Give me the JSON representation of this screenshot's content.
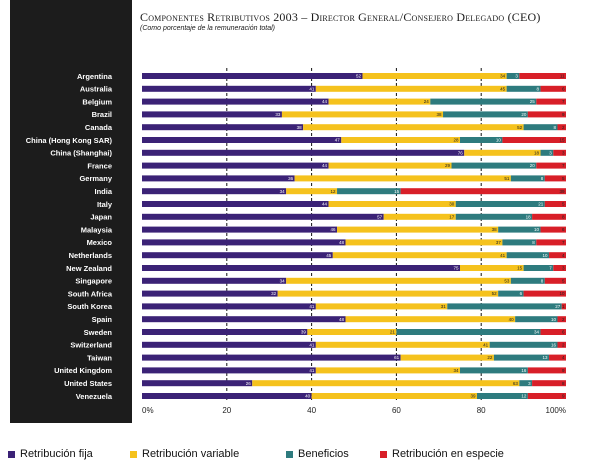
{
  "title": "Componentes Retributivos 2003 – Director General/Consejero Delegado (CEO)",
  "subtitle": "(Como porcentaje de la remuneración total)",
  "colors": {
    "fija": "#3b2276",
    "variable": "#f5c21d",
    "beneficios": "#2e7b7e",
    "especie": "#d81f28",
    "sidebar": "#1c1c1c"
  },
  "chart_data": {
    "type": "bar",
    "orientation": "horizontal",
    "stacked": true,
    "xlim": [
      0,
      100
    ],
    "x_ticks": [
      "0%",
      "20",
      "40",
      "60",
      "80",
      "100%"
    ],
    "grid": "dashed-vertical",
    "legend_position": "bottom",
    "categories": [
      "Argentina",
      "Australia",
      "Belgium",
      "Brazil",
      "Canada",
      "China (Hong Kong SAR)",
      "China (Shanghai)",
      "France",
      "Germany",
      "India",
      "Italy",
      "Japan",
      "Malaysia",
      "Mexico",
      "Netherlands",
      "New Zealand",
      "Singapore",
      "South Africa",
      "South Korea",
      "Spain",
      "Sweden",
      "Switzerland",
      "Taiwan",
      "United Kingdom",
      "United States",
      "Venezuela"
    ],
    "series": [
      {
        "name": "Retribución fija",
        "values": [
          52,
          41,
          44,
          33,
          38,
          47,
          76,
          44,
          36,
          34,
          44,
          57,
          46,
          48,
          45,
          75,
          34,
          32,
          41,
          48,
          39,
          41,
          61,
          41,
          26,
          40
        ]
      },
      {
        "name": "Retribución variable",
        "values": [
          34,
          45,
          24,
          38,
          52,
          28,
          18,
          29,
          51,
          12,
          30,
          17,
          38,
          37,
          41,
          15,
          53,
          52,
          31,
          40,
          21,
          41,
          22,
          34,
          63,
          39
        ]
      },
      {
        "name": "Beneficios",
        "values": [
          3,
          8,
          25,
          20,
          8,
          10,
          3,
          20,
          8,
          15,
          21,
          18,
          10,
          8,
          10,
          7,
          8,
          6,
          27,
          10,
          34,
          16,
          13,
          16,
          3,
          12
        ]
      },
      {
        "name": "Retribución en especie",
        "values": [
          11,
          6,
          7,
          9,
          2,
          15,
          3,
          7,
          5,
          39,
          5,
          8,
          6,
          7,
          4,
          3,
          5,
          10,
          1,
          2,
          6,
          2,
          4,
          9,
          8,
          9
        ]
      }
    ]
  }
}
